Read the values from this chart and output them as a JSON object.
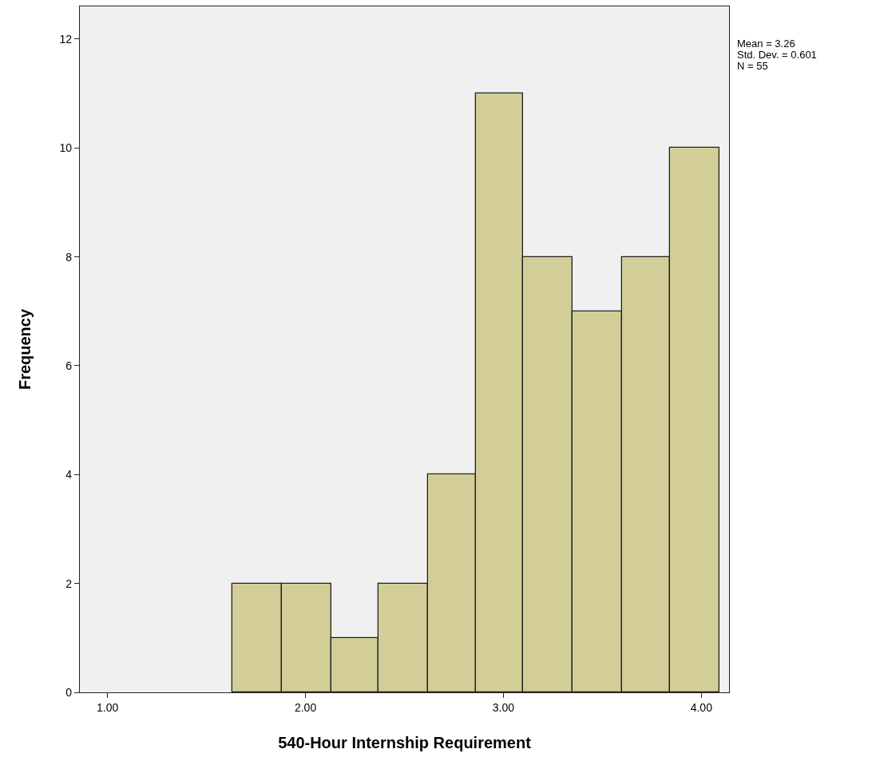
{
  "chart_data": {
    "type": "histogram",
    "xlabel": "540-Hour Internship Requirement",
    "ylabel": "Frequency",
    "bins": [
      1.63,
      1.88,
      2.13,
      2.37,
      2.62,
      2.86,
      3.1,
      3.35,
      3.6,
      3.84,
      4.09
    ],
    "values": [
      2,
      2,
      1,
      2,
      4,
      11,
      8,
      7,
      8,
      10
    ],
    "color": "#d3ce97",
    "xlim": [
      0.86,
      4.14
    ],
    "xticks": [
      {
        "value": 1,
        "label": "1.00"
      },
      {
        "value": 2,
        "label": "2.00"
      },
      {
        "value": 3,
        "label": "3.00"
      },
      {
        "value": 4,
        "label": "4.00"
      }
    ],
    "ylim": [
      0,
      12.6
    ],
    "yticks": [
      0,
      2,
      4,
      6,
      8,
      10,
      12
    ],
    "grid": false,
    "annotations": [
      "Mean = 3.26",
      "Std. Dev. = 0.601",
      "N = 55"
    ]
  }
}
